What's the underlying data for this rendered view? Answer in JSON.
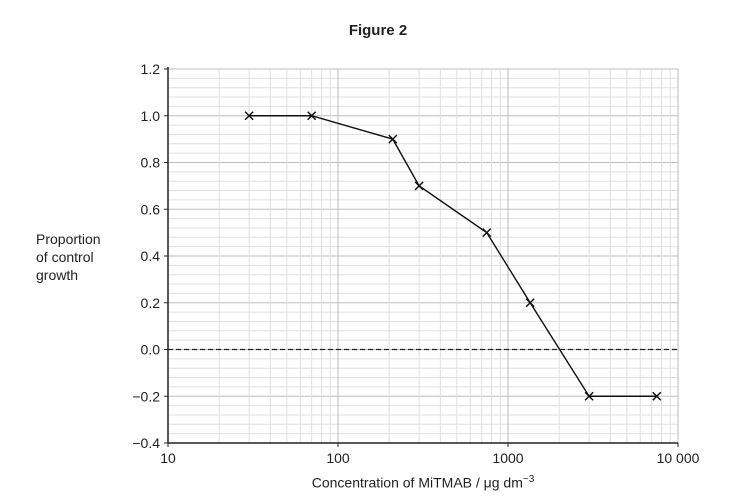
{
  "chart_data": {
    "type": "line",
    "title": "Figure 2",
    "xlabel": "Concentration of MiTMAB / μg dm",
    "xlabel_superscript": "−3",
    "ylabel": "Proportion\nof control\ngrowth",
    "x_scale": "log",
    "xlim": [
      10,
      10000
    ],
    "ylim": [
      -0.4,
      1.2
    ],
    "x_ticks": [
      10,
      100,
      1000,
      10000
    ],
    "x_tick_labels": [
      "10",
      "100",
      "1000",
      "10 000"
    ],
    "y_ticks": [
      -0.4,
      -0.2,
      0.0,
      0.2,
      0.4,
      0.6,
      0.8,
      1.0,
      1.2
    ],
    "y_tick_labels": [
      "−0.4",
      "−0.2",
      "0.0",
      "0.2",
      "0.4",
      "0.6",
      "0.8",
      "1.0",
      "1.2"
    ],
    "grid": true,
    "reference_line": {
      "y": 0,
      "style": "dashed"
    },
    "marker": "x",
    "series": [
      {
        "x": [
          30,
          70,
          210,
          300,
          750,
          1350,
          3000,
          7500
        ],
        "y": [
          1.0,
          1.0,
          0.9,
          0.7,
          0.5,
          0.2,
          -0.2,
          -0.2
        ]
      }
    ],
    "colors": {
      "line": "#111111",
      "grid_major": "#bdbdbd",
      "grid_minor": "#e0e0e0"
    }
  }
}
